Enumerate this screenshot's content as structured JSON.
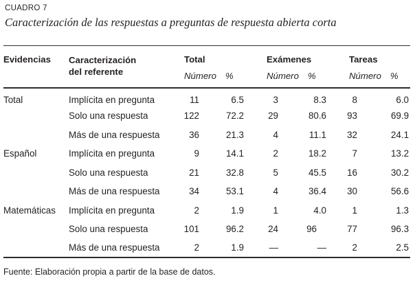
{
  "title": "CUADRO 7",
  "subtitle": "Caracterización de las respuestas a preguntas de respuesta abierta corta",
  "table": {
    "col1_header": "Evidencias",
    "col2_header_line1": "Caracterización",
    "col2_header_line2": "del referente",
    "groups": [
      "Total",
      "Exámenes",
      "Tareas"
    ],
    "subheader": {
      "numero": "Número",
      "pct": "%"
    },
    "rows": [
      {
        "evidencia": "Total",
        "label": "Implícita en pregunta",
        "values": [
          "11",
          "6.5",
          "3",
          "8.3",
          "8",
          "6.0"
        ]
      },
      {
        "evidencia": "",
        "label": "Solo una respuesta",
        "values": [
          "122",
          "72.2",
          "29",
          "80.6",
          "93",
          "69.9"
        ]
      },
      {
        "evidencia": "",
        "label": "Más de una respuesta",
        "values": [
          "36",
          "21.3",
          "4",
          "11.1",
          "32",
          "24.1"
        ]
      },
      {
        "evidencia": "Español",
        "label": "Implícita en pregunta",
        "values": [
          "9",
          "14.1",
          "2",
          "18.2",
          "7",
          "13.2"
        ]
      },
      {
        "evidencia": "",
        "label": "Solo una respuesta",
        "values": [
          "21",
          "32.8",
          "5",
          "45.5",
          "16",
          "30.2"
        ]
      },
      {
        "evidencia": "",
        "label": "Más de una respuesta",
        "values": [
          "34",
          "53.1",
          "4",
          "36.4",
          "30",
          "56.6"
        ]
      },
      {
        "evidencia": "Matemáticas",
        "label": "Implícita en pregunta",
        "values": [
          "2",
          "1.9",
          "1",
          "4.0",
          "1",
          "1.3"
        ]
      },
      {
        "evidencia": "",
        "label": "Solo una respuesta",
        "values": [
          "101",
          "96.2",
          "24",
          "96",
          "77",
          "96.3"
        ]
      },
      {
        "evidencia": "",
        "label": "Más de una respuesta",
        "values": [
          "2",
          "1.9",
          "—",
          "—",
          "2",
          "2.5"
        ]
      }
    ]
  },
  "source": "Fuente: Elaboración propia a partir de la base de datos."
}
